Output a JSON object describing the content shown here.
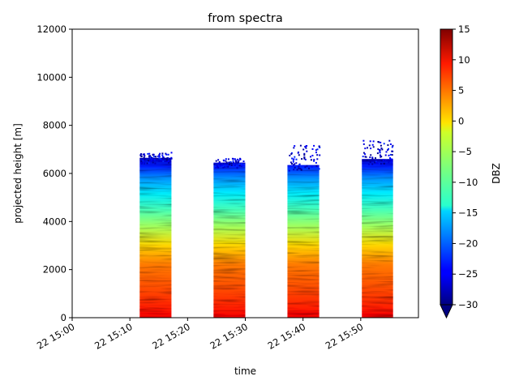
{
  "chart_data": {
    "type": "heatmap",
    "title": "from spectra",
    "xlabel": "time",
    "ylabel": "projected height [m]",
    "x_tick_labels": [
      "22 15:00",
      "22 15:10",
      "22 15:20",
      "22 15:30",
      "22 15:40",
      "22 15:50"
    ],
    "x_range_minutes": [
      0,
      60
    ],
    "ylim": [
      0,
      12000
    ],
    "y_ticks": [
      0,
      2000,
      4000,
      6000,
      8000,
      10000,
      12000
    ],
    "colorbar": {
      "label": "DBZ",
      "min": -30,
      "max": 15,
      "ticks": [
        -30,
        -25,
        -20,
        -15,
        -10,
        -5,
        0,
        5,
        10,
        15
      ],
      "colormap": "jet",
      "extend": "min"
    },
    "segments": [
      {
        "start_min": 11.7,
        "end_min": 17.2,
        "top_m": 6650,
        "speckle_top_m": 6900
      },
      {
        "start_min": 24.5,
        "end_min": 30.0,
        "top_m": 6450,
        "speckle_top_m": 6650
      },
      {
        "start_min": 37.3,
        "end_min": 42.8,
        "top_m": 6350,
        "speckle_top_m": 7200
      },
      {
        "start_min": 50.2,
        "end_min": 55.6,
        "top_m": 6600,
        "speckle_top_m": 7400
      }
    ],
    "reflectivity_profile": [
      {
        "height_m": 0,
        "dbz": 10
      },
      {
        "height_m": 400,
        "dbz": 8
      },
      {
        "height_m": 1200,
        "dbz": 6
      },
      {
        "height_m": 2200,
        "dbz": 4
      },
      {
        "height_m": 3000,
        "dbz": 0
      },
      {
        "height_m": 3800,
        "dbz": -6
      },
      {
        "height_m": 4500,
        "dbz": -10
      },
      {
        "height_m": 5200,
        "dbz": -14
      },
      {
        "height_m": 5800,
        "dbz": -18
      },
      {
        "height_m": 6300,
        "dbz": -23
      },
      {
        "height_m": 6700,
        "dbz": -28
      }
    ]
  }
}
